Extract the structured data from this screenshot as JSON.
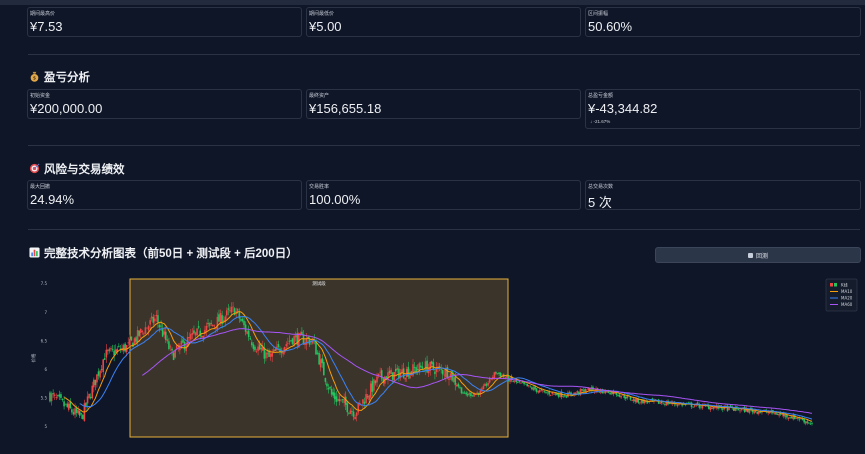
{
  "row1": {
    "card1": {
      "label": "期间最高价",
      "value": "¥7.53"
    },
    "card2": {
      "label": "期间最低价",
      "value": "¥5.00"
    },
    "card3": {
      "label": "区间振幅",
      "value": "50.60%"
    }
  },
  "profit": {
    "title": "盈亏分析",
    "icon": "money-bag-icon",
    "card1": {
      "label": "初始资金",
      "value": "¥200,000.00"
    },
    "card2": {
      "label": "最终资产",
      "value": "¥156,655.18"
    },
    "card3": {
      "label": "总盈亏金额",
      "value": "¥-43,344.82",
      "delta": "↓ -21.67%"
    }
  },
  "risk": {
    "title": "风险与交易绩效",
    "icon": "target-icon",
    "card1": {
      "label": "最大回撤",
      "value": "24.94%"
    },
    "card2": {
      "label": "交易胜率",
      "value": "100.00%"
    },
    "card3": {
      "label": "总交易次数",
      "value": "5 次"
    }
  },
  "chart_section": {
    "title": "完整技术分析图表（前50日 + 测试段 + 后200日）",
    "icon": "bar-chart-icon",
    "button_label": "回测"
  },
  "chart_data": {
    "type": "candlestick",
    "title": "",
    "ylabel": "价格",
    "ylim": [
      4.8,
      7.6
    ],
    "yticks": [
      "7.5",
      "7",
      "6.5",
      "6",
      "5.5",
      "5"
    ],
    "highlight_label": "测试段",
    "legend": [
      "K线",
      "MA10",
      "MA20",
      "MA60"
    ],
    "colors": {
      "up": "#ef4444",
      "down": "#22c55e",
      "ma10": "#f59e0b",
      "ma20": "#3b82f6",
      "ma60": "#a855f7",
      "highlight": "#e8b13a"
    },
    "waypoints": [
      [
        0,
        5.55
      ],
      [
        10,
        5.35
      ],
      [
        20,
        5.15
      ],
      [
        35,
        6.25
      ],
      [
        50,
        6.4
      ],
      [
        60,
        6.7
      ],
      [
        68,
        6.9
      ],
      [
        78,
        6.25
      ],
      [
        90,
        6.55
      ],
      [
        105,
        6.8
      ],
      [
        118,
        7.05
      ],
      [
        130,
        6.45
      ],
      [
        140,
        6.2
      ],
      [
        155,
        6.55
      ],
      [
        168,
        6.5
      ],
      [
        180,
        5.55
      ],
      [
        195,
        5.25
      ],
      [
        210,
        5.85
      ],
      [
        225,
        5.95
      ],
      [
        240,
        6.05
      ],
      [
        255,
        5.95
      ],
      [
        265,
        5.55
      ],
      [
        275,
        5.6
      ],
      [
        285,
        5.95
      ],
      [
        295,
        5.8
      ],
      [
        305,
        5.7
      ],
      [
        315,
        5.6
      ],
      [
        330,
        5.55
      ],
      [
        345,
        5.65
      ],
      [
        360,
        5.6
      ],
      [
        375,
        5.45
      ],
      [
        400,
        5.4
      ],
      [
        420,
        5.35
      ],
      [
        440,
        5.3
      ],
      [
        460,
        5.25
      ],
      [
        478,
        5.15
      ],
      [
        487,
        5.05
      ]
    ]
  }
}
